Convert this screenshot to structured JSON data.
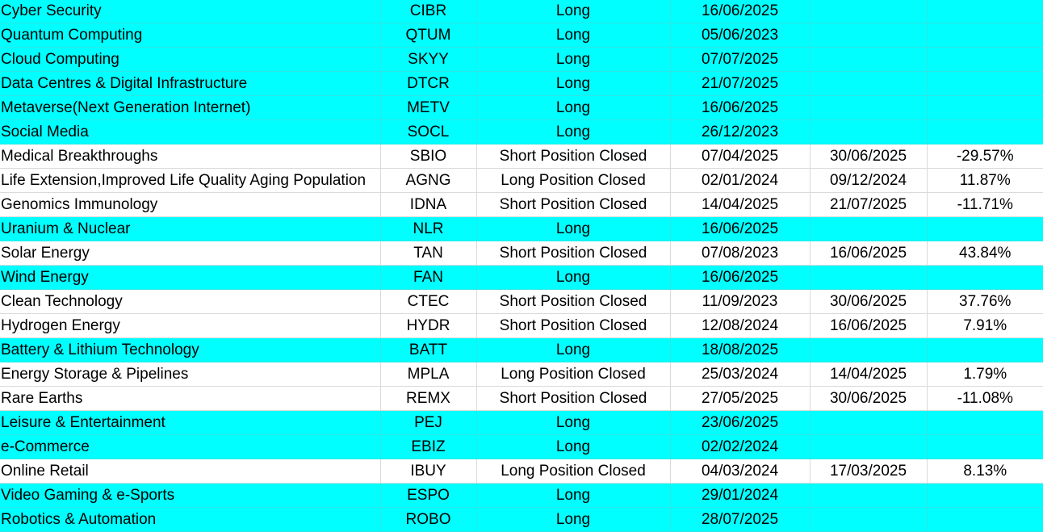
{
  "highlight_color": "#00ffff",
  "rows": [
    {
      "theme": "Cyber Security",
      "ticker": "CIBR",
      "position": "Long",
      "open": "16/06/2025",
      "close": "",
      "ret": "",
      "hl": true
    },
    {
      "theme": "Quantum Computing",
      "ticker": "QTUM",
      "position": "Long",
      "open": "05/06/2023",
      "close": "",
      "ret": "",
      "hl": true
    },
    {
      "theme": "Cloud Computing",
      "ticker": "SKYY",
      "position": "Long",
      "open": "07/07/2025",
      "close": "",
      "ret": "",
      "hl": true
    },
    {
      "theme": "Data Centres & Digital Infrastructure",
      "ticker": "DTCR",
      "position": "Long",
      "open": "21/07/2025",
      "close": "",
      "ret": "",
      "hl": true
    },
    {
      "theme": "Metaverse(Next Generation Internet)",
      "ticker": "METV",
      "position": "Long",
      "open": "16/06/2025",
      "close": "",
      "ret": "",
      "hl": true
    },
    {
      "theme": "Social Media",
      "ticker": "SOCL",
      "position": "Long",
      "open": "26/12/2023",
      "close": "",
      "ret": "",
      "hl": true
    },
    {
      "theme": "Medical Breakthroughs",
      "ticker": "SBIO",
      "position": "Short Position Closed",
      "open": "07/04/2025",
      "close": "30/06/2025",
      "ret": "-29.57%",
      "hl": false
    },
    {
      "theme": "Life Extension,Improved Life Quality Aging Population",
      "ticker": "AGNG",
      "position": "Long Position Closed",
      "open": "02/01/2024",
      "close": "09/12/2024",
      "ret": "11.87%",
      "hl": false
    },
    {
      "theme": "Genomics Immunology",
      "ticker": "IDNA",
      "position": "Short Position Closed",
      "open": "14/04/2025",
      "close": "21/07/2025",
      "ret": "-11.71%",
      "hl": false
    },
    {
      "theme": "Uranium & Nuclear",
      "ticker": "NLR",
      "position": "Long",
      "open": "16/06/2025",
      "close": "",
      "ret": "",
      "hl": true
    },
    {
      "theme": "Solar Energy",
      "ticker": "TAN",
      "position": "Short Position Closed",
      "open": "07/08/2023",
      "close": "16/06/2025",
      "ret": "43.84%",
      "hl": false
    },
    {
      "theme": "Wind Energy",
      "ticker": "FAN",
      "position": "Long",
      "open": "16/06/2025",
      "close": "",
      "ret": "",
      "hl": true
    },
    {
      "theme": "Clean Technology",
      "ticker": "CTEC",
      "position": "Short Position Closed",
      "open": "11/09/2023",
      "close": "30/06/2025",
      "ret": "37.76%",
      "hl": false
    },
    {
      "theme": "Hydrogen Energy",
      "ticker": "HYDR",
      "position": "Short Position Closed",
      "open": "12/08/2024",
      "close": "16/06/2025",
      "ret": "7.91%",
      "hl": false
    },
    {
      "theme": "Battery & Lithium Technology",
      "ticker": "BATT",
      "position": "Long",
      "open": "18/08/2025",
      "close": "",
      "ret": "",
      "hl": true
    },
    {
      "theme": "Energy Storage & Pipelines",
      "ticker": "MPLA",
      "position": "Long Position Closed",
      "open": "25/03/2024",
      "close": "14/04/2025",
      "ret": "1.79%",
      "hl": false
    },
    {
      "theme": "Rare Earths",
      "ticker": "REMX",
      "position": "Short Position Closed",
      "open": "27/05/2025",
      "close": "30/06/2025",
      "ret": "-11.08%",
      "hl": false
    },
    {
      "theme": "Leisure & Entertainment",
      "ticker": "PEJ",
      "position": "Long",
      "open": "23/06/2025",
      "close": "",
      "ret": "",
      "hl": true
    },
    {
      "theme": "e-Commerce",
      "ticker": "EBIZ",
      "position": "Long",
      "open": "02/02/2024",
      "close": "",
      "ret": "",
      "hl": true
    },
    {
      "theme": "Online Retail",
      "ticker": "IBUY",
      "position": "Long Position Closed",
      "open": "04/03/2024",
      "close": "17/03/2025",
      "ret": "8.13%",
      "hl": false
    },
    {
      "theme": "Video Gaming & e-Sports",
      "ticker": "ESPO",
      "position": "Long",
      "open": "29/01/2024",
      "close": "",
      "ret": "",
      "hl": true
    },
    {
      "theme": "Robotics & Automation",
      "ticker": "ROBO",
      "position": "Long",
      "open": "28/07/2025",
      "close": "",
      "ret": "",
      "hl": true
    }
  ]
}
